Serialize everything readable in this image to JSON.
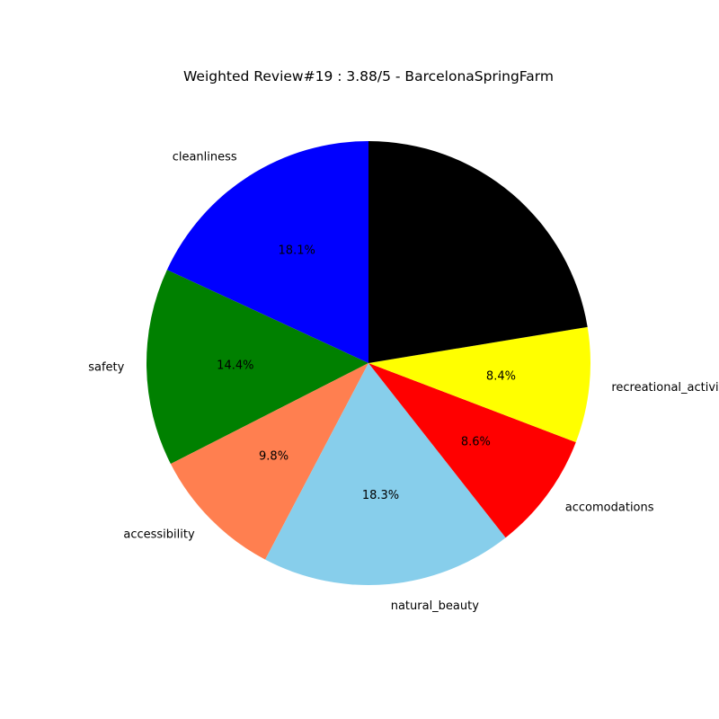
{
  "chart_data": {
    "type": "pie",
    "title": "Weighted Review#19 : 3.88/5 - BarcelonaSpringFarm",
    "start_angle_deg": 90,
    "direction": "counterclockwise",
    "legend": "none",
    "slices": [
      {
        "label": "cleanliness",
        "value": 18.1,
        "pct_label": "18.1%",
        "color": "#0000ff"
      },
      {
        "label": "safety",
        "value": 14.4,
        "pct_label": "14.4%",
        "color": "#008000"
      },
      {
        "label": "accessibility",
        "value": 9.8,
        "pct_label": "9.8%",
        "color": "#ff7f50"
      },
      {
        "label": "natural_beauty",
        "value": 18.3,
        "pct_label": "18.3%",
        "color": "#87ceeb"
      },
      {
        "label": "accomodations",
        "value": 8.6,
        "pct_label": "8.6%",
        "color": "#ff0000"
      },
      {
        "label": "recreational_activities",
        "value": 8.4,
        "pct_label": "8.4%",
        "color": "#ffff00"
      },
      {
        "label": "",
        "value": 22.4,
        "pct_label": "",
        "color": "#000000"
      }
    ]
  }
}
